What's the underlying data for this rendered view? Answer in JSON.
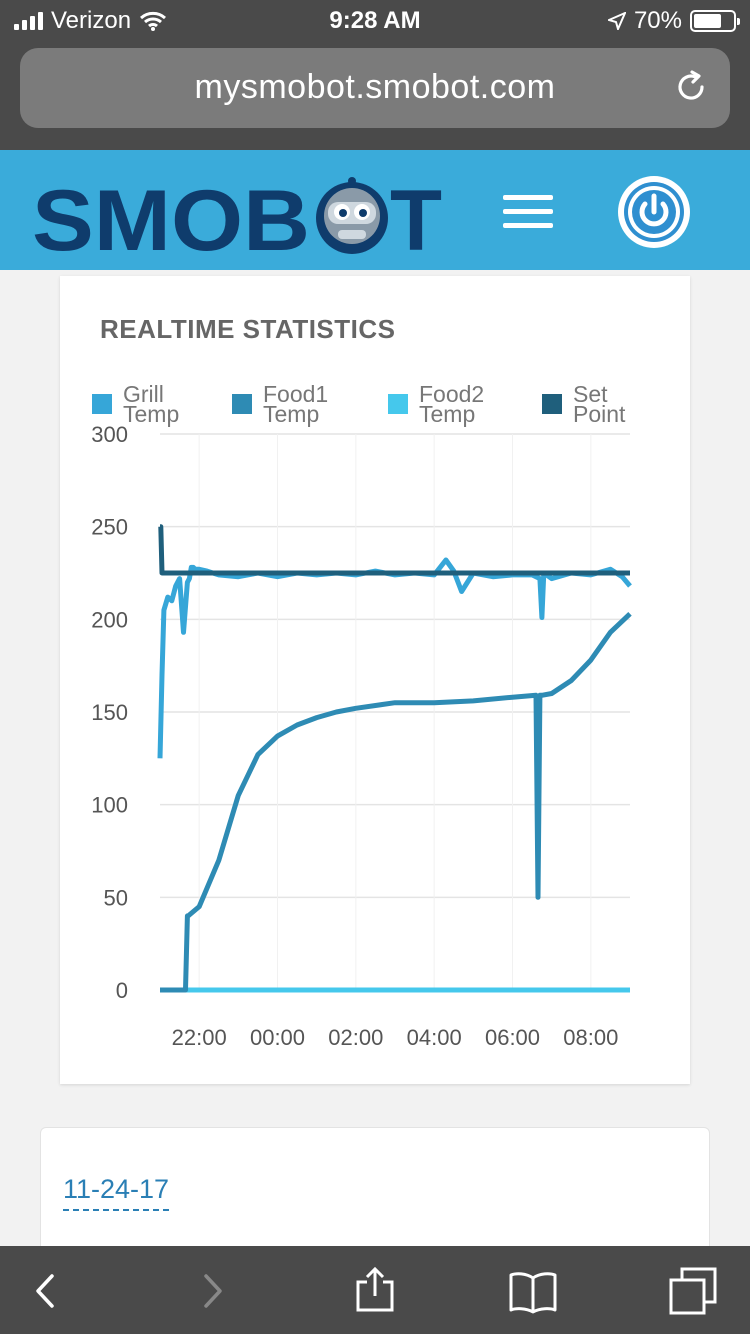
{
  "status_bar": {
    "carrier": "Verizon",
    "time": "9:28 AM",
    "battery": "70%",
    "battery_level": 0.7
  },
  "browser": {
    "url": "mysmobot.smobot.com"
  },
  "header": {
    "logo_text": "SMOBOT"
  },
  "stats": {
    "title": "REALTIME STATISTICS"
  },
  "chart_data": {
    "type": "line",
    "legend": [
      {
        "name": "Grill Temp",
        "color": "#36a6d8"
      },
      {
        "name": "Food1 Temp",
        "color": "#2e8bb4"
      },
      {
        "name": "Food2 Temp",
        "color": "#45c8ec"
      },
      {
        "name": "Set Point",
        "color": "#1f5f7c"
      }
    ],
    "legend_position": "top",
    "yticks": [
      "300",
      "250",
      "200",
      "150",
      "100",
      "50",
      "0"
    ],
    "xticks": [
      "22:00",
      "00:00",
      "02:00",
      "04:00",
      "06:00",
      "08:00"
    ],
    "ylim": [
      0,
      300
    ],
    "grid": true,
    "x_hours_range": [
      21.0,
      33.0
    ],
    "series": [
      {
        "name": "Grill Temp",
        "x": [
          21.0,
          21.05,
          21.1,
          21.2,
          21.3,
          21.4,
          21.5,
          21.6,
          21.7,
          21.75,
          21.8,
          21.85,
          21.9,
          22.0,
          22.2,
          22.5,
          23.0,
          23.5,
          24.0,
          24.5,
          25.0,
          25.5,
          26.0,
          26.5,
          27.0,
          27.5,
          28.0,
          28.3,
          28.5,
          28.7,
          29.0,
          29.5,
          30.0,
          30.5,
          30.7,
          30.75,
          30.8,
          31.0,
          31.5,
          32.0,
          32.5,
          32.8,
          33.0
        ],
        "y": [
          125,
          170,
          205,
          212,
          210,
          218,
          222,
          193,
          220,
          222,
          228,
          228,
          227,
          227,
          226,
          224,
          223,
          225,
          223,
          225,
          224,
          225,
          224,
          226,
          224,
          225,
          224,
          232,
          226,
          215,
          225,
          223,
          224,
          224,
          222,
          201,
          225,
          222,
          225,
          224,
          227,
          223,
          218
        ]
      },
      {
        "name": "Food1 Temp",
        "x": [
          21.0,
          21.5,
          21.65,
          21.7,
          21.72,
          22.0,
          22.5,
          23.0,
          23.5,
          24.0,
          24.5,
          25.0,
          25.5,
          26.0,
          27.0,
          28.0,
          29.0,
          30.0,
          30.6,
          30.65,
          30.7,
          30.75,
          31.0,
          31.5,
          32.0,
          32.5,
          33.0
        ],
        "y": [
          0,
          0,
          0,
          40,
          40,
          45,
          70,
          105,
          127,
          137,
          143,
          147,
          150,
          152,
          155,
          155,
          156,
          158,
          159,
          50,
          159,
          159,
          160,
          167,
          178,
          193,
          203
        ]
      },
      {
        "name": "Food2 Temp",
        "x": [
          21.0,
          33.0
        ],
        "y": [
          0,
          0
        ]
      },
      {
        "name": "Set Point",
        "x": [
          21.0,
          21.02,
          21.05,
          22.0,
          33.0
        ],
        "y": [
          250,
          250,
          225,
          225,
          225
        ]
      }
    ]
  },
  "date_card": {
    "date": "11-24-17"
  }
}
